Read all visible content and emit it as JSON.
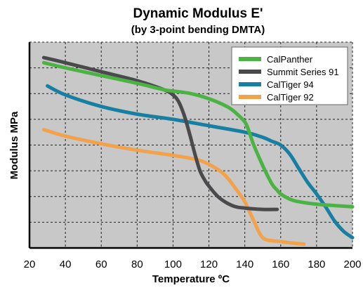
{
  "chart_data": {
    "type": "line",
    "title": "Dynamic Modulus E'",
    "subtitle": "(by 3-point bending DMTA)",
    "xlabel": "Temperature ºC",
    "ylabel": "Modulus MPa",
    "xlim": [
      20,
      200
    ],
    "x_ticks": [
      "20",
      "40",
      "60",
      "80",
      "100",
      "120",
      "140",
      "160",
      "180",
      "200"
    ],
    "ylim": [
      0,
      8
    ],
    "y_scale": "no tick labels",
    "grid": "dashed, both axes",
    "legend_position": "top-right",
    "series": [
      {
        "name": "CalPanther",
        "color": "#4bb343",
        "x": [
          28,
          40,
          60,
          80,
          95,
          100,
          110,
          120,
          130,
          135,
          140,
          142,
          145,
          150,
          155,
          158,
          160,
          165,
          170,
          180,
          190,
          200
        ],
        "y": [
          7.2,
          7.0,
          6.7,
          6.4,
          6.15,
          6.1,
          6.0,
          5.8,
          5.5,
          5.25,
          4.9,
          4.6,
          4.0,
          3.2,
          2.5,
          2.25,
          2.1,
          1.9,
          1.8,
          1.7,
          1.65,
          1.6
        ]
      },
      {
        "name": "Summit Series 91",
        "color": "#4a4a4c",
        "x": [
          28,
          40,
          60,
          80,
          95,
          100,
          103,
          106,
          109,
          112,
          115,
          118,
          120,
          125,
          130,
          135,
          140,
          150,
          158
        ],
        "y": [
          7.4,
          7.2,
          6.85,
          6.5,
          6.15,
          5.95,
          5.7,
          5.2,
          4.5,
          3.7,
          3.0,
          2.6,
          2.4,
          2.0,
          1.75,
          1.6,
          1.55,
          1.5,
          1.5
        ]
      },
      {
        "name": "CalTiger 94",
        "color": "#177fa2",
        "x": [
          30,
          40,
          60,
          80,
          100,
          120,
          140,
          150,
          155,
          160,
          165,
          170,
          175,
          180,
          185,
          190,
          195,
          200
        ],
        "y": [
          6.3,
          5.95,
          5.5,
          5.2,
          5.0,
          4.75,
          4.5,
          4.3,
          4.15,
          4.0,
          3.65,
          3.1,
          2.55,
          2.1,
          1.6,
          1.05,
          0.65,
          0.4
        ]
      },
      {
        "name": "CalTiger 92",
        "color": "#f2a24b",
        "x": [
          28,
          40,
          60,
          80,
          100,
          115,
          125,
          130,
          135,
          140,
          143,
          146,
          148,
          150,
          153,
          160,
          165,
          173
        ],
        "y": [
          4.6,
          4.35,
          4.05,
          3.8,
          3.6,
          3.4,
          3.05,
          2.75,
          2.3,
          1.8,
          1.35,
          0.9,
          0.6,
          0.4,
          0.3,
          0.25,
          0.2,
          0.15
        ]
      }
    ]
  }
}
